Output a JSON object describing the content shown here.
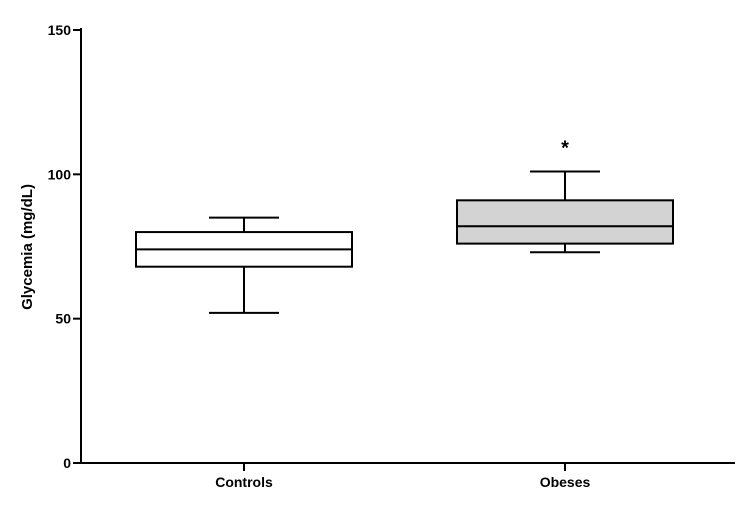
{
  "chart_data": {
    "type": "box",
    "title": "",
    "xlabel": "",
    "ylabel": "Glycemia (mg/dL)",
    "ylim": [
      0,
      150
    ],
    "yticks": [
      0,
      50,
      100,
      150
    ],
    "grid": false,
    "categories": [
      "Controls",
      "Obeses"
    ],
    "boxes": [
      {
        "name": "Controls",
        "min": 52,
        "q1": 68,
        "median": 74,
        "q3": 80,
        "max": 85,
        "fill": "#ffffff"
      },
      {
        "name": "Obeses",
        "min": 73,
        "q1": 76,
        "median": 82,
        "q3": 91,
        "max": 101,
        "fill": "#d3d3d3"
      }
    ],
    "annotations": [
      {
        "category": "Obeses",
        "text": "*",
        "y": 112
      }
    ]
  }
}
